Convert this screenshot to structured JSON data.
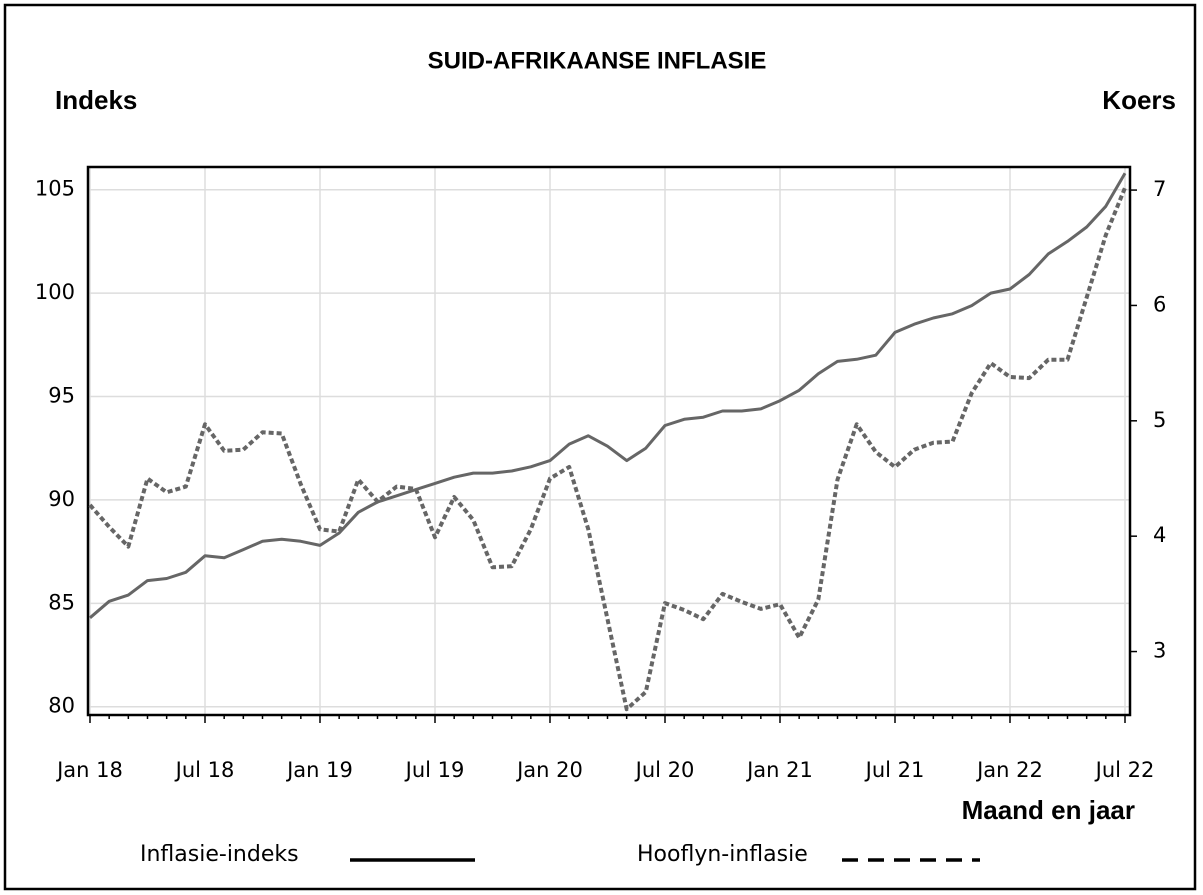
{
  "chart_data": {
    "type": "line",
    "title": "SUID-AFRIKAANSE INFLASIE",
    "ylabel": "Indeks",
    "y2label": "Koers",
    "xlabel": "Maand en jaar",
    "categories": [
      "Jan 18",
      null,
      null,
      null,
      null,
      null,
      "Jul 18",
      null,
      null,
      null,
      null,
      null,
      "Jan 19",
      null,
      null,
      null,
      null,
      null,
      "Jul 19",
      null,
      null,
      null,
      null,
      null,
      "Jan 20",
      null,
      null,
      null,
      null,
      null,
      "Jul 20",
      null,
      null,
      null,
      null,
      null,
      "Jan 21",
      null,
      null,
      null,
      null,
      null,
      "Jul 21",
      null,
      null,
      null,
      null,
      null,
      "Jan 22",
      null,
      null,
      null,
      null,
      null,
      "Jul 22"
    ],
    "series": [
      {
        "name": "Inflasie-indeks",
        "color": "#666666",
        "style": "solid",
        "values": [
          84.3,
          85.1,
          85.4,
          86.1,
          86.2,
          86.5,
          87.3,
          87.2,
          87.6,
          88.0,
          88.1,
          88.0,
          87.8,
          88.4,
          89.4,
          89.9,
          90.2,
          90.5,
          90.8,
          91.1,
          91.3,
          91.3,
          91.4,
          91.6,
          91.9,
          92.7,
          93.1,
          92.6,
          91.9,
          92.5,
          93.6,
          93.9,
          94.0,
          94.3,
          94.3,
          94.4,
          94.8,
          95.3,
          96.1,
          96.7,
          96.8,
          97.0,
          98.1,
          98.5,
          98.8,
          99.0,
          99.4,
          100.0,
          100.2,
          100.9,
          101.9,
          102.5,
          103.2,
          104.2,
          105.8
        ]
      },
      {
        "name": "Hooflyn-inflasie",
        "color": "#666666",
        "style": "dashed",
        "axis": "y2",
        "values": [
          4.27,
          4.08,
          3.91,
          4.5,
          4.38,
          4.43,
          4.97,
          4.74,
          4.75,
          4.9,
          4.89,
          4.45,
          4.06,
          4.04,
          4.49,
          4.3,
          4.43,
          4.41,
          3.99,
          4.34,
          4.14,
          3.73,
          3.74,
          4.06,
          4.5,
          4.6,
          4.06,
          3.28,
          2.5,
          2.65,
          3.42,
          3.36,
          3.28,
          3.5,
          3.43,
          3.37,
          3.41,
          3.12,
          3.45,
          4.49,
          4.97,
          4.73,
          4.6,
          4.75,
          4.81,
          4.82,
          5.24,
          5.5,
          5.38,
          5.37,
          5.53,
          5.53,
          6.07,
          6.61,
          7.02
        ]
      }
    ],
    "ylim": [
      79.6,
      106.1
    ],
    "yticks": [
      80,
      85,
      90,
      95,
      100,
      105
    ],
    "y2lim": [
      2.45,
      7.2
    ],
    "y2ticks": [
      3,
      4,
      5,
      6,
      7
    ],
    "grid": true,
    "legend": "bottom"
  }
}
